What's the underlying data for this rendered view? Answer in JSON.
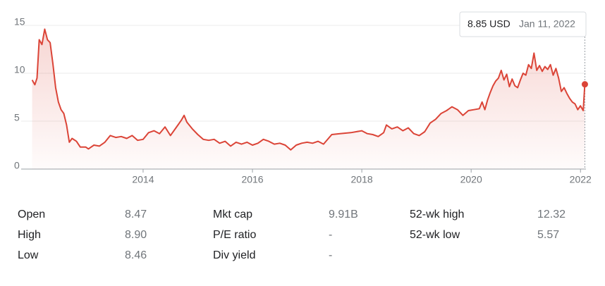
{
  "chart_data": {
    "type": "line",
    "x": [
      2011.97,
      2012.02,
      2012.06,
      2012.1,
      2012.15,
      2012.2,
      2012.25,
      2012.3,
      2012.35,
      2012.4,
      2012.45,
      2012.5,
      2012.55,
      2012.6,
      2012.65,
      2012.7,
      2012.78,
      2012.85,
      2012.95,
      2013.0,
      2013.1,
      2013.2,
      2013.3,
      2013.4,
      2013.5,
      2013.6,
      2013.7,
      2013.8,
      2013.9,
      2014.0,
      2014.1,
      2014.2,
      2014.3,
      2014.4,
      2014.5,
      2014.6,
      2014.7,
      2014.75,
      2014.8,
      2014.9,
      2015.0,
      2015.1,
      2015.2,
      2015.3,
      2015.4,
      2015.5,
      2015.6,
      2015.7,
      2015.8,
      2015.9,
      2016.0,
      2016.1,
      2016.2,
      2016.3,
      2016.4,
      2016.5,
      2016.6,
      2016.7,
      2016.8,
      2016.9,
      2017.0,
      2017.1,
      2017.2,
      2017.3,
      2017.45,
      2017.6,
      2017.8,
      2018.0,
      2018.1,
      2018.2,
      2018.3,
      2018.4,
      2018.45,
      2018.55,
      2018.65,
      2018.75,
      2018.85,
      2018.95,
      2019.05,
      2019.15,
      2019.25,
      2019.35,
      2019.45,
      2019.55,
      2019.65,
      2019.75,
      2019.85,
      2019.95,
      2020.05,
      2020.15,
      2020.2,
      2020.25,
      2020.3,
      2020.35,
      2020.4,
      2020.45,
      2020.5,
      2020.55,
      2020.6,
      2020.65,
      2020.7,
      2020.75,
      2020.8,
      2020.85,
      2020.9,
      2020.95,
      2021.0,
      2021.05,
      2021.1,
      2021.15,
      2021.2,
      2021.25,
      2021.3,
      2021.35,
      2021.4,
      2021.45,
      2021.5,
      2021.55,
      2021.6,
      2021.65,
      2021.7,
      2021.75,
      2021.8,
      2021.85,
      2021.9,
      2021.95,
      2022.0,
      2022.05,
      2022.08
    ],
    "values": [
      9.3,
      8.8,
      9.5,
      13.5,
      13.0,
      14.6,
      13.5,
      13.2,
      11.0,
      8.5,
      7.0,
      6.2,
      5.8,
      4.6,
      2.8,
      3.2,
      2.9,
      2.3,
      2.3,
      2.1,
      2.5,
      2.4,
      2.8,
      3.5,
      3.3,
      3.4,
      3.2,
      3.5,
      3.0,
      3.1,
      3.8,
      4.0,
      3.7,
      4.4,
      3.5,
      4.3,
      5.1,
      5.6,
      4.9,
      4.2,
      3.6,
      3.1,
      3.0,
      3.1,
      2.7,
      2.9,
      2.4,
      2.8,
      2.6,
      2.8,
      2.5,
      2.7,
      3.1,
      2.9,
      2.6,
      2.7,
      2.5,
      2.0,
      2.5,
      2.7,
      2.8,
      2.7,
      2.9,
      2.6,
      3.6,
      3.7,
      3.8,
      4.0,
      3.7,
      3.6,
      3.4,
      3.8,
      4.6,
      4.2,
      4.4,
      4.0,
      4.3,
      3.7,
      3.5,
      3.9,
      4.8,
      5.2,
      5.8,
      6.1,
      6.5,
      6.2,
      5.6,
      6.1,
      6.2,
      6.3,
      7.0,
      6.2,
      7.2,
      8.0,
      8.7,
      9.2,
      9.5,
      10.3,
      9.3,
      9.9,
      8.6,
      9.4,
      8.7,
      8.5,
      9.3,
      10.0,
      9.8,
      10.9,
      10.5,
      12.1,
      10.3,
      10.8,
      10.2,
      10.7,
      10.4,
      10.9,
      9.8,
      10.5,
      9.5,
      8.1,
      8.5,
      7.9,
      7.4,
      7.0,
      6.8,
      6.2,
      6.6,
      6.1,
      8.85
    ],
    "color": "#db4437",
    "xlim": [
      2011.95,
      2022.1
    ],
    "xticks": [
      2014,
      2016,
      2018,
      2020,
      2022
    ],
    "ylim": [
      0,
      16
    ],
    "yticks": [
      0,
      5,
      10,
      15
    ],
    "grid": true,
    "tooltip": {
      "price": "8.85 USD",
      "date": "Jan 11, 2022"
    }
  },
  "stats": [
    {
      "label": "Open",
      "value": "8.47"
    },
    {
      "label": "High",
      "value": "8.90"
    },
    {
      "label": "Low",
      "value": "8.46"
    },
    {
      "label": "Mkt cap",
      "value": "9.91B"
    },
    {
      "label": "P/E ratio",
      "value": "-"
    },
    {
      "label": "Div yield",
      "value": "-"
    },
    {
      "label": "52-wk high",
      "value": "12.32"
    },
    {
      "label": "52-wk low",
      "value": "5.57"
    }
  ]
}
